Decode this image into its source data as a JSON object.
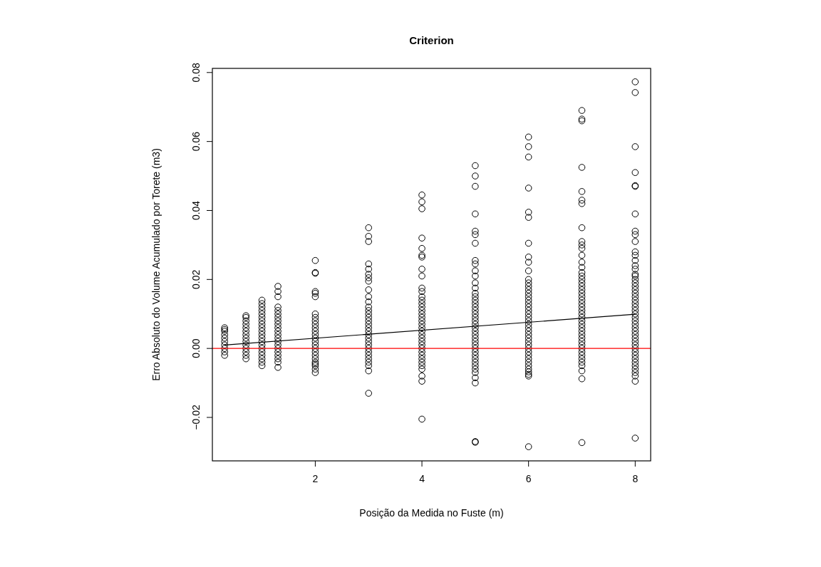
{
  "chart_data": {
    "type": "scatter",
    "title": "Criterion",
    "xlabel": "Posição da Medida no Fuste (m)",
    "ylabel": "Erro Absoluto do Volume Acumulado por Torete (m3)",
    "xlim": [
      0.07,
      8.29
    ],
    "ylim": [
      -0.0326,
      0.0812
    ],
    "xticks": [
      2,
      4,
      6,
      8
    ],
    "yticks": [
      {
        "value": -0.02,
        "label": "−0.02"
      },
      {
        "value": 0,
        "label": "0.00"
      },
      {
        "value": 0.02,
        "label": "0.02"
      },
      {
        "value": 0.04,
        "label": "0.04"
      },
      {
        "value": 0.06,
        "label": "0.06"
      },
      {
        "value": 0.08,
        "label": "0.08"
      }
    ],
    "marker": "circle",
    "ref_lines": [
      {
        "axis": "y",
        "value": 0,
        "color": "#ff0000"
      }
    ],
    "series": [
      {
        "color": "#000000",
        "x": [
          0.3,
          0.3,
          0.3,
          0.3,
          0.3,
          0.3,
          0.3,
          0.3,
          0.3,
          0.3
        ],
        "values": [
          0.006,
          0.0055,
          0.005,
          0.004,
          0.003,
          0.002,
          0.001,
          0,
          -0.001,
          -0.002
        ]
      },
      {
        "color": "#000000",
        "x": [
          0.7,
          0.7,
          0.7,
          0.7,
          0.7,
          0.7,
          0.7,
          0.7,
          0.7,
          0.7,
          0.7,
          0.7,
          0.7,
          0.7
        ],
        "values": [
          0.0095,
          0.009,
          0.008,
          0.007,
          0.006,
          0.005,
          0.004,
          0.003,
          0.002,
          0.001,
          0,
          -0.001,
          -0.002,
          -0.003
        ]
      },
      {
        "color": "#000000",
        "x": [
          1,
          1,
          1,
          1,
          1,
          1,
          1,
          1,
          1,
          1,
          1,
          1,
          1,
          1,
          1,
          1,
          1,
          1,
          1,
          1
        ],
        "values": [
          0.014,
          0.013,
          0.012,
          0.011,
          0.01,
          0.009,
          0.008,
          0.007,
          0.006,
          0.005,
          0.004,
          0.003,
          0.002,
          0.001,
          0,
          -0.001,
          -0.002,
          -0.003,
          -0.004,
          -0.005
        ]
      },
      {
        "color": "#000000",
        "x": [
          1.3,
          1.3,
          1.3,
          1.3,
          1.3,
          1.3,
          1.3,
          1.3,
          1.3,
          1.3,
          1.3,
          1.3,
          1.3,
          1.3,
          1.3,
          1.3,
          1.3,
          1.3,
          1.3,
          1.3,
          1.3
        ],
        "values": [
          0.018,
          0.0165,
          0.015,
          0.012,
          0.011,
          0.01,
          0.009,
          0.008,
          0.007,
          0.006,
          0.005,
          0.004,
          0.003,
          0.002,
          0.001,
          0,
          -0.001,
          -0.002,
          -0.003,
          -0.004,
          -0.0055
        ]
      },
      {
        "color": "#000000",
        "x": [
          2,
          2,
          2,
          2,
          2,
          2,
          2,
          2,
          2,
          2,
          2,
          2,
          2,
          2,
          2,
          2,
          2,
          2,
          2,
          2,
          2,
          2,
          2,
          2,
          2
        ],
        "values": [
          0.0255,
          0.022,
          0.0218,
          0.0165,
          0.016,
          0.015,
          0.01,
          0.009,
          0.008,
          0.007,
          0.006,
          0.005,
          0.004,
          0.003,
          0.002,
          0.001,
          0,
          -0.001,
          -0.002,
          -0.003,
          -0.004,
          -0.005,
          -0.006,
          -0.007,
          -0.0045
        ]
      },
      {
        "color": "#000000",
        "x": [
          3,
          3,
          3,
          3,
          3,
          3,
          3,
          3,
          3,
          3,
          3,
          3,
          3,
          3,
          3,
          3,
          3,
          3,
          3,
          3,
          3,
          3,
          3,
          3,
          3,
          3,
          3,
          3,
          3,
          3,
          3
        ],
        "values": [
          0.035,
          0.0325,
          0.031,
          0.0245,
          0.023,
          0.0215,
          0.0205,
          0.0195,
          0.017,
          0.015,
          0.0135,
          0.012,
          0.011,
          0.01,
          0.009,
          0.008,
          0.007,
          0.006,
          0.005,
          0.004,
          0.003,
          0.002,
          0.001,
          0,
          -0.001,
          -0.002,
          -0.003,
          -0.004,
          -0.005,
          -0.0065,
          -0.013
        ]
      },
      {
        "color": "#000000",
        "x": [
          4,
          4,
          4,
          4,
          4,
          4,
          4,
          4,
          4,
          4,
          4,
          4,
          4,
          4,
          4,
          4,
          4,
          4,
          4,
          4,
          4,
          4,
          4,
          4,
          4,
          4,
          4,
          4,
          4,
          4,
          4,
          4,
          4,
          4,
          4,
          4
        ],
        "values": [
          0.0445,
          0.0425,
          0.0405,
          0.032,
          0.029,
          0.027,
          0.0265,
          0.023,
          0.021,
          0.0175,
          0.0165,
          0.015,
          0.014,
          0.013,
          0.012,
          0.011,
          0.01,
          0.009,
          0.008,
          0.007,
          0.006,
          0.005,
          0.004,
          0.003,
          0.002,
          0.001,
          0,
          -0.001,
          -0.002,
          -0.003,
          -0.004,
          -0.005,
          -0.006,
          -0.008,
          -0.0095,
          -0.0205
        ]
      },
      {
        "color": "#000000",
        "x": [
          5,
          5,
          5,
          5,
          5,
          5,
          5,
          5,
          5,
          5,
          5,
          5,
          5,
          5,
          5,
          5,
          5,
          5,
          5,
          5,
          5,
          5,
          5,
          5,
          5,
          5,
          5,
          5,
          5,
          5,
          5,
          5,
          5,
          5,
          5,
          5,
          5,
          5,
          5,
          5,
          5
        ],
        "values": [
          0.053,
          0.05,
          0.047,
          0.039,
          0.034,
          0.033,
          0.0305,
          0.0255,
          0.0245,
          0.0225,
          0.021,
          0.019,
          0.0175,
          0.016,
          0.015,
          0.014,
          0.013,
          0.012,
          0.011,
          0.01,
          0.009,
          0.008,
          0.007,
          0.006,
          0.005,
          0.004,
          0.003,
          0.002,
          0.001,
          0,
          -0.001,
          -0.002,
          -0.003,
          -0.004,
          -0.005,
          -0.006,
          -0.007,
          -0.0085,
          -0.01,
          -0.027,
          -0.0272
        ]
      },
      {
        "color": "#000000",
        "x": [
          6,
          6,
          6,
          6,
          6,
          6,
          6,
          6,
          6,
          6,
          6,
          6,
          6,
          6,
          6,
          6,
          6,
          6,
          6,
          6,
          6,
          6,
          6,
          6,
          6,
          6,
          6,
          6,
          6,
          6,
          6,
          6,
          6,
          6,
          6,
          6,
          6,
          6,
          6,
          6,
          6
        ],
        "values": [
          0.0613,
          0.0585,
          0.0555,
          0.0465,
          0.0395,
          0.038,
          0.0305,
          0.0265,
          0.025,
          0.0225,
          0.02,
          0.019,
          0.018,
          0.017,
          0.016,
          0.015,
          0.014,
          0.013,
          0.012,
          0.011,
          0.01,
          0.009,
          0.008,
          0.007,
          0.006,
          0.005,
          0.004,
          0.003,
          0.002,
          0.001,
          0,
          -0.001,
          -0.002,
          -0.003,
          -0.004,
          -0.005,
          -0.006,
          -0.0068,
          -0.0075,
          -0.008,
          -0.0285
        ]
      },
      {
        "color": "#000000",
        "x": [
          7,
          7,
          7,
          7,
          7,
          7,
          7,
          7,
          7,
          7,
          7,
          7,
          7,
          7,
          7,
          7,
          7,
          7,
          7,
          7,
          7,
          7,
          7,
          7,
          7,
          7,
          7,
          7,
          7,
          7,
          7,
          7,
          7,
          7,
          7,
          7,
          7,
          7,
          7,
          7,
          7,
          7,
          7,
          7,
          7
        ],
        "values": [
          0.069,
          0.0665,
          0.066,
          0.0525,
          0.0455,
          0.043,
          0.042,
          0.035,
          0.031,
          0.03,
          0.029,
          0.027,
          0.025,
          0.0235,
          0.022,
          0.021,
          0.02,
          0.019,
          0.018,
          0.017,
          0.016,
          0.015,
          0.014,
          0.013,
          0.012,
          0.011,
          0.01,
          0.009,
          0.008,
          0.007,
          0.006,
          0.005,
          0.004,
          0.003,
          0.002,
          0.001,
          0,
          -0.001,
          -0.002,
          -0.003,
          -0.004,
          -0.005,
          -0.0065,
          -0.0088,
          -0.0273
        ]
      },
      {
        "color": "#000000",
        "x": [
          8,
          8,
          8,
          8,
          8,
          8,
          8,
          8,
          8,
          8,
          8,
          8,
          8,
          8,
          8,
          8,
          8,
          8,
          8,
          8,
          8,
          8,
          8,
          8,
          8,
          8,
          8,
          8,
          8,
          8,
          8,
          8,
          8,
          8,
          8,
          8,
          8,
          8,
          8,
          8,
          8,
          8,
          8,
          8,
          8,
          8,
          8,
          8
        ],
        "values": [
          0.0773,
          0.0742,
          0.0585,
          0.051,
          0.0472,
          0.047,
          0.039,
          0.034,
          0.033,
          0.031,
          0.028,
          0.027,
          0.0255,
          0.024,
          0.023,
          0.0215,
          0.021,
          0.02,
          0.019,
          0.018,
          0.017,
          0.016,
          0.015,
          0.014,
          0.013,
          0.012,
          0.011,
          0.01,
          0.009,
          0.008,
          0.007,
          0.006,
          0.005,
          0.004,
          0.003,
          0.002,
          0.001,
          0,
          -0.001,
          -0.002,
          -0.003,
          -0.004,
          -0.005,
          -0.006,
          -0.007,
          -0.008,
          -0.0095,
          -0.026
        ]
      },
      {
        "type": "line",
        "color": "#000000",
        "marker": "none",
        "line_style": "solid",
        "x": [
          0.3,
          8
        ],
        "values": [
          0.001,
          0.0099
        ]
      }
    ]
  }
}
